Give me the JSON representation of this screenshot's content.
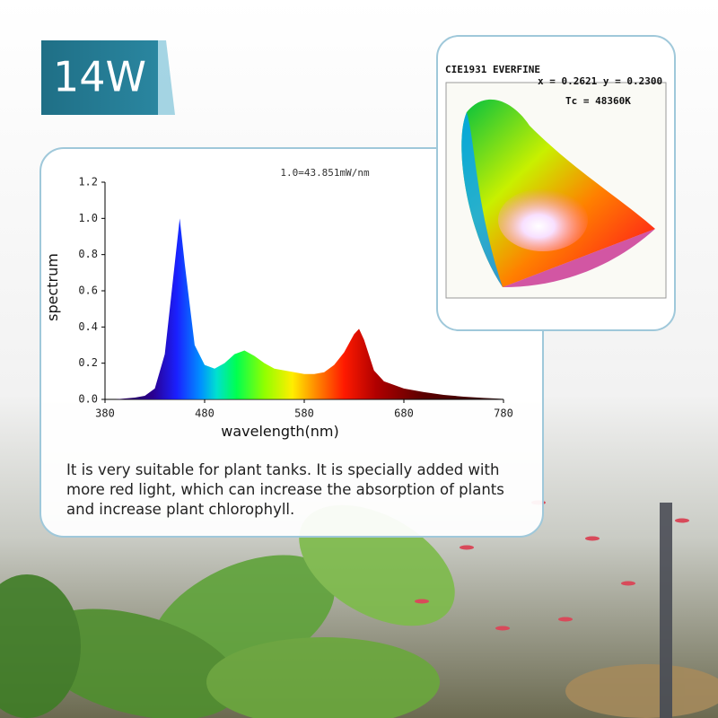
{
  "badge": {
    "text": "14W"
  },
  "cie": {
    "title": "CIE1931 EVERFINE",
    "coords": "x = 0.2621 y = 0.2300",
    "tc": "Tc = 48360K"
  },
  "description": "It is very suitable for plant tanks. It is specially added with more red light, which can increase the absorption of plants and increase plant chlorophyll.",
  "chart_data": {
    "type": "area",
    "annotation": "1.0=43.851mW/nm",
    "xlabel": "wavelength(nm)",
    "ylabel": "spectrum",
    "x": [
      380,
      390,
      400,
      410,
      420,
      430,
      440,
      450,
      455,
      460,
      470,
      480,
      490,
      500,
      510,
      520,
      530,
      540,
      550,
      560,
      570,
      580,
      590,
      600,
      610,
      620,
      630,
      635,
      640,
      650,
      660,
      670,
      680,
      690,
      700,
      720,
      740,
      760,
      780
    ],
    "values": [
      0,
      0,
      0.005,
      0.01,
      0.02,
      0.06,
      0.25,
      0.75,
      1.0,
      0.75,
      0.3,
      0.19,
      0.17,
      0.2,
      0.25,
      0.27,
      0.24,
      0.2,
      0.17,
      0.16,
      0.15,
      0.14,
      0.14,
      0.15,
      0.19,
      0.26,
      0.36,
      0.39,
      0.33,
      0.16,
      0.1,
      0.08,
      0.06,
      0.05,
      0.04,
      0.025,
      0.015,
      0.008,
      0.003
    ],
    "xlim": [
      380,
      780
    ],
    "ylim": [
      0,
      1.2
    ],
    "xticks": [
      380,
      480,
      580,
      680,
      780
    ],
    "yticks": [
      {
        "value": 0,
        "label": "0.0"
      },
      0.2,
      0.4,
      0.6,
      0.8,
      {
        "value": 1,
        "label": "1.0"
      },
      1.2
    ]
  }
}
